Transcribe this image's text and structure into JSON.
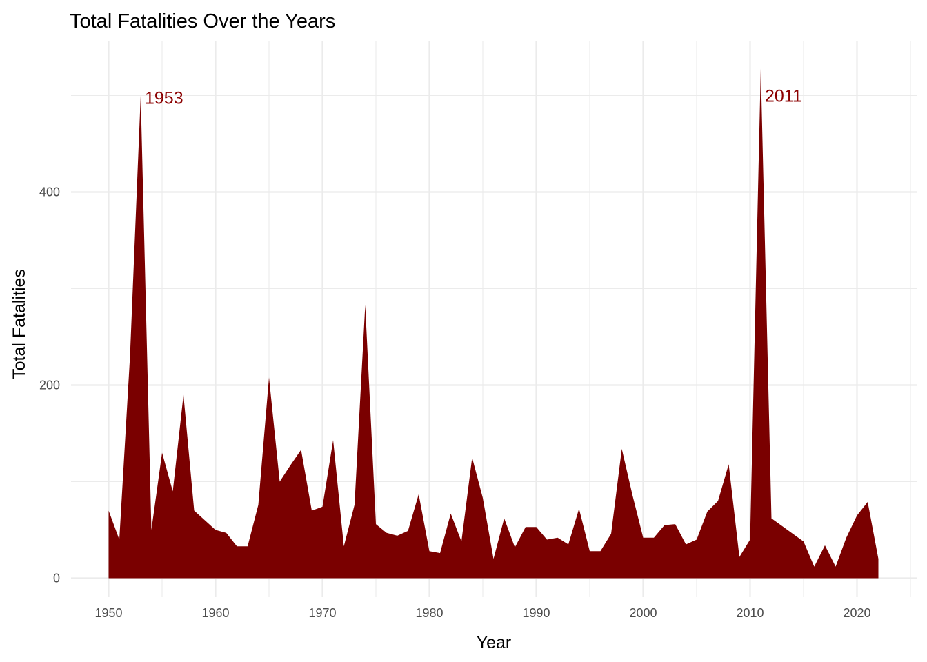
{
  "chart_data": {
    "type": "area",
    "title": "Total Fatalities Over the Years",
    "xlabel": "Year",
    "ylabel": "Total Fatalities",
    "xlim": [
      1950,
      2022
    ],
    "ylim": [
      0,
      530
    ],
    "x_ticks": [
      "1950",
      "1960",
      "1970",
      "1980",
      "1990",
      "2000",
      "2010",
      "2020"
    ],
    "y_ticks": [
      "0",
      "200",
      "400"
    ],
    "grid": true,
    "legend": "none",
    "fill_color": "#7a0000",
    "annotation_color": "#8b0000",
    "annotations": [
      {
        "x": 1953,
        "y": 498,
        "label": "1953"
      },
      {
        "x": 2011,
        "y": 500,
        "label": "2011"
      }
    ],
    "series": [
      {
        "x": [
          1950,
          1951,
          1952,
          1953,
          1954,
          1955,
          1956,
          1957,
          1958,
          1959,
          1960,
          1961,
          1962,
          1963,
          1964,
          1965,
          1966,
          1967,
          1968,
          1969,
          1970,
          1971,
          1972,
          1973,
          1974,
          1975,
          1976,
          1977,
          1978,
          1979,
          1980,
          1981,
          1982,
          1983,
          1984,
          1985,
          1986,
          1987,
          1988,
          1989,
          1990,
          1991,
          1992,
          1993,
          1994,
          1995,
          1996,
          1997,
          1998,
          1999,
          2000,
          2001,
          2002,
          2003,
          2004,
          2005,
          2006,
          2007,
          2008,
          2009,
          2010,
          2011,
          2012,
          2013,
          2014,
          2015,
          2016,
          2017,
          2018,
          2019,
          2020,
          2021,
          2022
        ],
        "y": [
          70,
          40,
          230,
          500,
          50,
          130,
          90,
          190,
          70,
          60,
          50,
          47,
          33,
          33,
          76,
          208,
          100,
          117,
          133,
          70,
          74,
          143,
          33,
          76,
          283,
          56,
          47,
          44,
          49,
          87,
          28,
          26,
          67,
          38,
          125,
          83,
          20,
          62,
          32,
          53,
          53,
          40,
          42,
          35,
          72,
          28,
          28,
          46,
          134,
          86,
          42,
          42,
          55,
          56,
          35,
          40,
          69,
          80,
          118,
          22,
          40,
          528,
          62,
          54,
          46,
          38,
          12,
          34,
          12,
          42,
          65,
          79,
          20
        ]
      }
    ]
  }
}
